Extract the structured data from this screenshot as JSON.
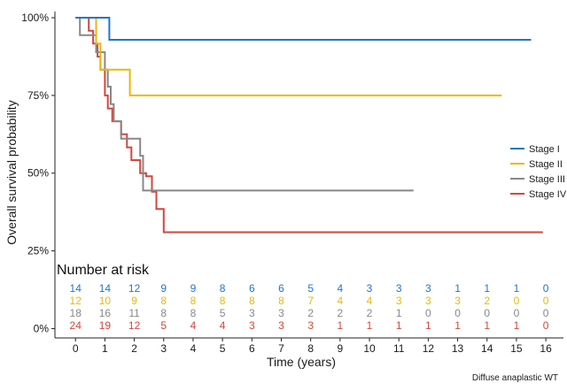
{
  "chart_data": {
    "type": "line",
    "ylabel": "Overall survival probability",
    "xlabel": "Time (years)",
    "caption": "Diffuse anaplastic WT",
    "x_ticks": [
      0,
      1,
      2,
      3,
      4,
      5,
      6,
      7,
      8,
      9,
      10,
      11,
      12,
      13,
      14,
      15,
      16
    ],
    "y_ticks": [
      {
        "value": 0,
        "label": "0%"
      },
      {
        "value": 25,
        "label": "25%"
      },
      {
        "value": 50,
        "label": "50%"
      },
      {
        "value": 75,
        "label": "75%"
      },
      {
        "value": 100,
        "label": "100%"
      }
    ],
    "xlim": [
      -0.7,
      16.6
    ],
    "ylim": [
      -3,
      102
    ],
    "legend_position": "right",
    "series": [
      {
        "name": "Stage I",
        "color": "#1f77c4",
        "steps": [
          [
            0,
            100
          ],
          [
            1.15,
            92.9
          ]
        ],
        "end": 15.5,
        "at_risk": [
          14,
          14,
          12,
          9,
          9,
          8,
          6,
          6,
          5,
          4,
          3,
          3,
          3,
          1,
          1,
          1,
          0
        ]
      },
      {
        "name": "Stage II",
        "color": "#e8b90b",
        "steps": [
          [
            0,
            100
          ],
          [
            0.7,
            91.7
          ],
          [
            0.85,
            83.3
          ],
          [
            1.85,
            75
          ]
        ],
        "end": 14.5,
        "at_risk": [
          12,
          10,
          9,
          8,
          8,
          8,
          8,
          8,
          7,
          4,
          4,
          3,
          3,
          3,
          2,
          0,
          0
        ]
      },
      {
        "name": "Stage III",
        "color": "#888888",
        "steps": [
          [
            0,
            100
          ],
          [
            0.15,
            94.4
          ],
          [
            0.7,
            88.9
          ],
          [
            1.0,
            83.3
          ],
          [
            1.1,
            77.8
          ],
          [
            1.2,
            72.2
          ],
          [
            1.3,
            66.7
          ],
          [
            1.55,
            61.1
          ],
          [
            2.2,
            55.6
          ],
          [
            2.3,
            44.4
          ]
        ],
        "end": 11.5,
        "at_risk": [
          18,
          16,
          11,
          8,
          8,
          5,
          3,
          3,
          2,
          2,
          2,
          1,
          0,
          0,
          0,
          0,
          0
        ]
      },
      {
        "name": "Stage IV",
        "color": "#d2473c",
        "steps": [
          [
            0,
            100
          ],
          [
            0.45,
            95.8
          ],
          [
            0.6,
            91.7
          ],
          [
            0.75,
            87.5
          ],
          [
            0.85,
            83.3
          ],
          [
            1.0,
            75
          ],
          [
            1.1,
            70.8
          ],
          [
            1.25,
            66.7
          ],
          [
            1.55,
            62.5
          ],
          [
            1.75,
            58.3
          ],
          [
            1.9,
            54.2
          ],
          [
            2.2,
            50
          ],
          [
            2.4,
            49
          ],
          [
            2.6,
            44
          ],
          [
            2.75,
            38.5
          ],
          [
            3.0,
            31
          ]
        ],
        "end": 15.9,
        "at_risk": [
          24,
          19,
          12,
          5,
          4,
          4,
          3,
          3,
          3,
          1,
          1,
          1,
          1,
          1,
          1,
          1,
          0
        ]
      }
    ],
    "risk_table_title": "Number at risk"
  }
}
